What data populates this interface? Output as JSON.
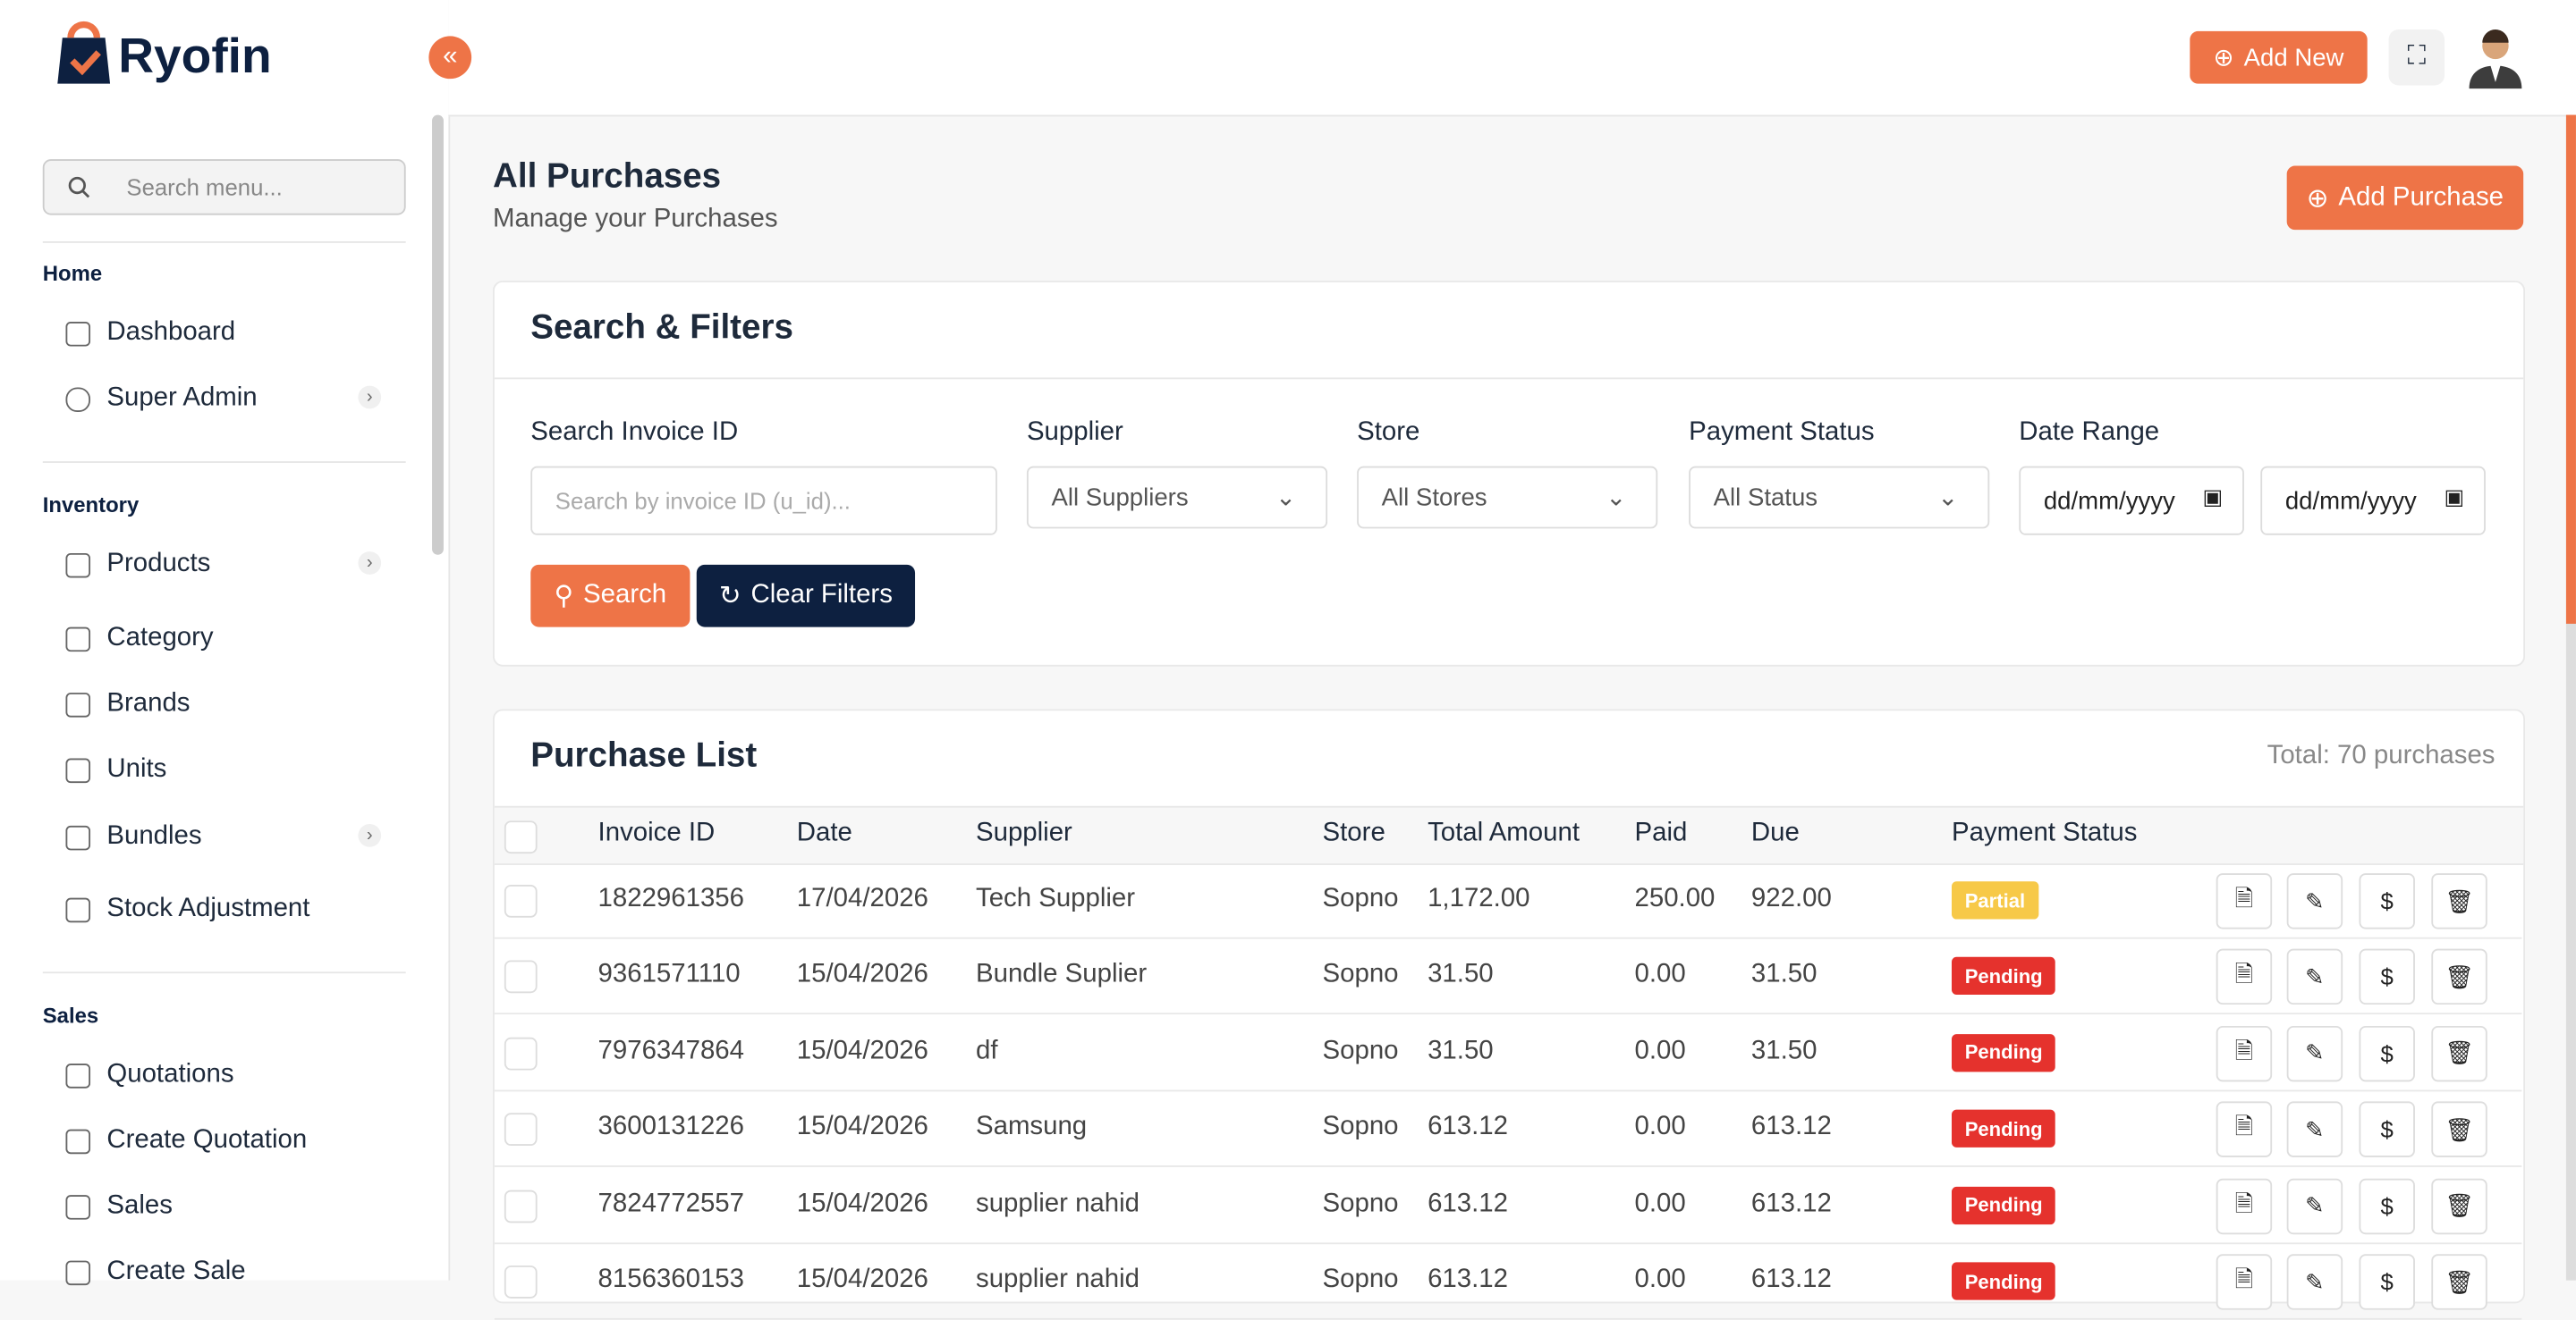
{
  "brand": "Ryofin",
  "header": {
    "add_new": "Add New"
  },
  "sidebar": {
    "search_placeholder": "Search menu...",
    "sections": [
      {
        "title": "Home",
        "items": [
          "Dashboard",
          "Super Admin"
        ]
      },
      {
        "title": "Inventory",
        "items": [
          "Products",
          "Category",
          "Brands",
          "Units",
          "Bundles",
          "Stock Adjustment"
        ]
      },
      {
        "title": "Sales",
        "items": [
          "Quotations",
          "Create Quotation",
          "Sales",
          "Create Sale"
        ]
      }
    ]
  },
  "page": {
    "title": "All Purchases",
    "subtitle": "Manage your Purchases",
    "add_button": "Add Purchase"
  },
  "filters": {
    "title": "Search & Filters",
    "labels": [
      "Search Invoice ID",
      "Supplier",
      "Store",
      "Payment Status",
      "Date Range"
    ],
    "invoice_placeholder": "Search by invoice ID (u_id)...",
    "selects": [
      "All Suppliers",
      "All Stores",
      "All Status"
    ],
    "date_placeholders": [
      "dd/mm/yyyy",
      "dd/mm/yyyy"
    ],
    "search": "Search",
    "clear": "Clear Filters"
  },
  "list": {
    "title": "Purchase List",
    "total": "Total: 70 purchases",
    "columns": [
      "Invoice ID",
      "Date",
      "Supplier",
      "Store",
      "Total Amount",
      "Paid",
      "Due",
      "Payment Status"
    ],
    "rows": [
      {
        "cells": [
          "1822961356",
          "17/04/2026",
          "Tech Supplier",
          "Sopno",
          "1,172.00",
          "250.00",
          "922.00"
        ],
        "status": "Partial",
        "status_color": "#f7c948"
      },
      {
        "cells": [
          "9361571110",
          "15/04/2026",
          "Bundle Suplier",
          "Sopno",
          "31.50",
          "0.00",
          "31.50"
        ],
        "status": "Pending",
        "status_color": "#e5322d"
      },
      {
        "cells": [
          "7976347864",
          "15/04/2026",
          "df",
          "Sopno",
          "31.50",
          "0.00",
          "31.50"
        ],
        "status": "Pending",
        "status_color": "#e5322d"
      },
      {
        "cells": [
          "3600131226",
          "15/04/2026",
          "Samsung",
          "Sopno",
          "613.12",
          "0.00",
          "613.12"
        ],
        "status": "Pending",
        "status_color": "#e5322d"
      },
      {
        "cells": [
          "7824772557",
          "15/04/2026",
          "supplier nahid",
          "Sopno",
          "613.12",
          "0.00",
          "613.12"
        ],
        "status": "Pending",
        "status_color": "#e5322d"
      },
      {
        "cells": [
          "8156360153",
          "15/04/2026",
          "supplier nahid",
          "Sopno",
          "613.12",
          "0.00",
          "613.12"
        ],
        "status": "Pending",
        "status_color": "#e5322d"
      }
    ]
  }
}
